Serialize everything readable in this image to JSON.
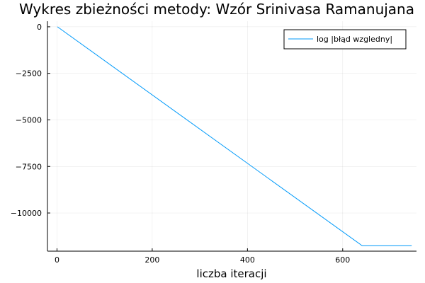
{
  "chart_data": {
    "type": "line",
    "title": "Wykres zbieżności metody: Wzór Srinivasa Ramanujana",
    "xlabel": "liczba iteracji",
    "ylabel": "",
    "xlim": [
      -20,
      755
    ],
    "ylim": [
      -12050,
      300
    ],
    "xticks": [
      0,
      200,
      400,
      600
    ],
    "xtick_labels": [
      "0",
      "200",
      "400",
      "600"
    ],
    "yticks": [
      0,
      -2500,
      -5000,
      -7500,
      -10000
    ],
    "ytick_labels": [
      "0",
      "−2500",
      "−5000",
      "−7500",
      "−10000"
    ],
    "grid": true,
    "legend_position": "top-right",
    "series": [
      {
        "name": "log |błąd wzgledny|",
        "color": "#009AFA",
        "x": [
          1,
          641,
          745
        ],
        "y": [
          0,
          -11760,
          -11760
        ]
      }
    ]
  }
}
